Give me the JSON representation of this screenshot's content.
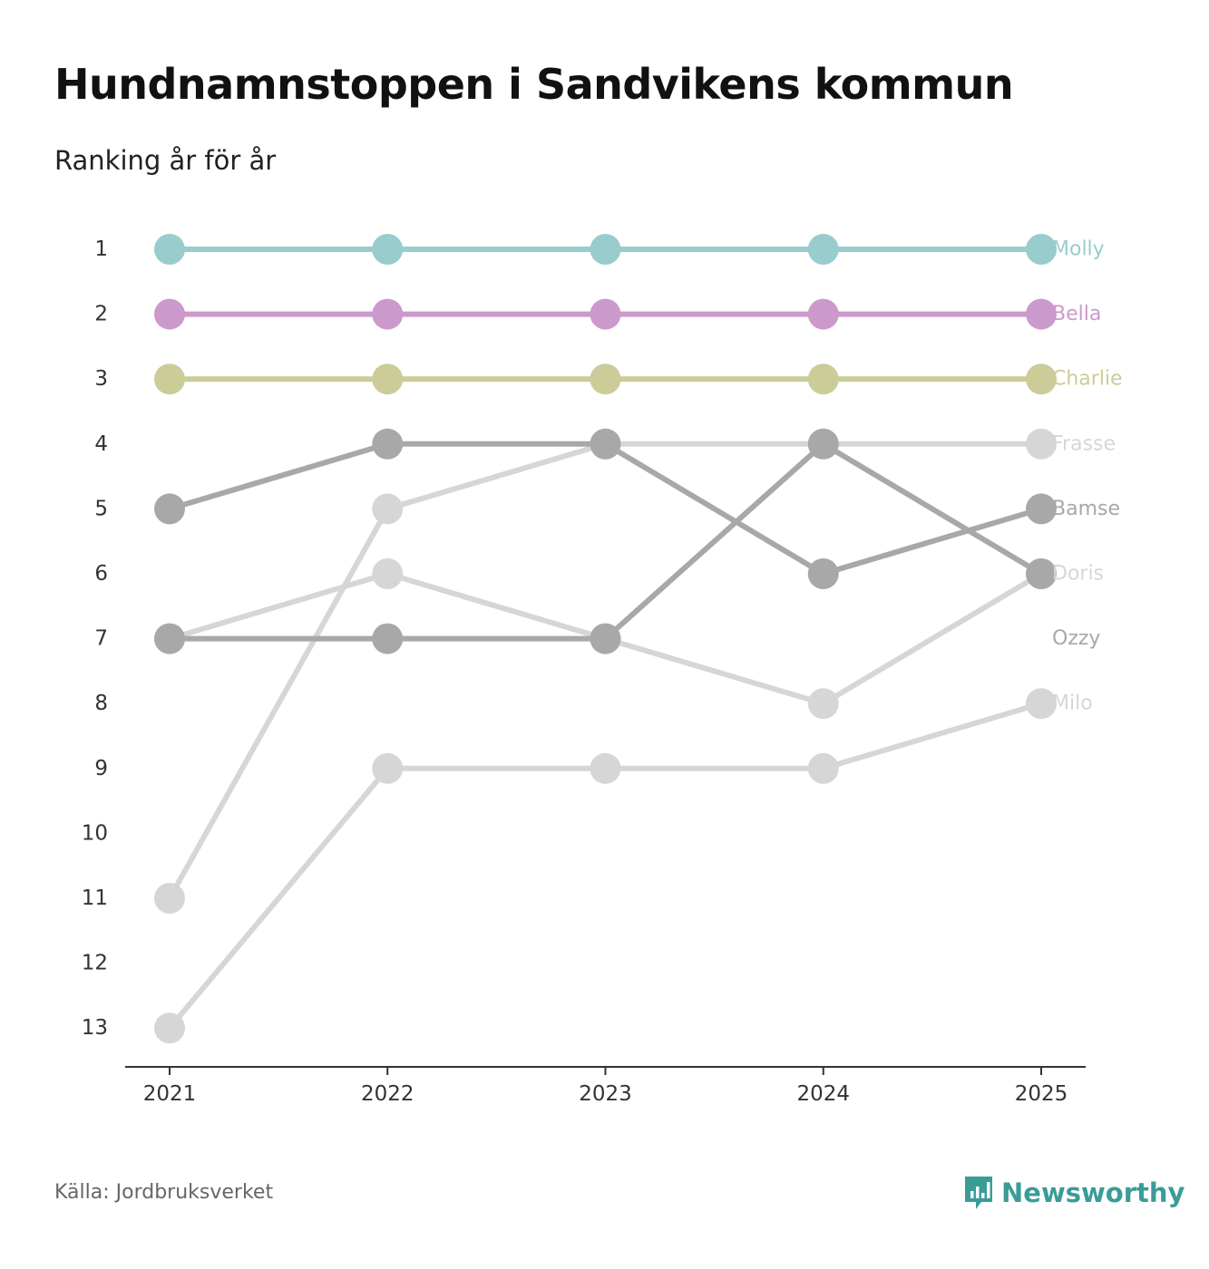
{
  "header": {
    "title": "Hundnamnstoppen i Sandvikens kommun",
    "subtitle": "Ranking år för år"
  },
  "footer": {
    "source": "Källa: Jordbruksverket",
    "brand": "Newsworthy"
  },
  "colors": {
    "teal": "#99cccc",
    "purple": "#cc99cc",
    "olive": "#cccc99",
    "dark_gray": "#a8a8a8",
    "light_gray": "#d6d6d6",
    "axis": "#333333",
    "brand": "#3a9c97"
  },
  "chart_data": {
    "type": "line",
    "subtype": "bump",
    "x": [
      "2021",
      "2022",
      "2023",
      "2024",
      "2025"
    ],
    "y_ticks": [
      1,
      2,
      3,
      4,
      5,
      6,
      7,
      8,
      9,
      10,
      11,
      12,
      13
    ],
    "y_reversed": true,
    "series": [
      {
        "name": "Milo",
        "values": [
          13,
          9,
          9,
          9,
          8
        ],
        "color": "#d6d6d6"
      },
      {
        "name": "Doris",
        "values": [
          7,
          6,
          7,
          8,
          6
        ],
        "color": "#d6d6d6"
      },
      {
        "name": "Frasse",
        "values": [
          11,
          5,
          4,
          4,
          4
        ],
        "color": "#d6d6d6"
      },
      {
        "name": "Ozzy",
        "values": [
          7,
          7,
          7,
          4,
          6
        ],
        "color": "#a8a8a8"
      },
      {
        "name": "Bamse",
        "values": [
          5,
          4,
          4,
          6,
          5
        ],
        "color": "#a8a8a8"
      },
      {
        "name": "Charlie",
        "values": [
          3,
          3,
          3,
          3,
          3
        ],
        "color": "#cccc99"
      },
      {
        "name": "Bella",
        "values": [
          2,
          2,
          2,
          2,
          2
        ],
        "color": "#cc99cc"
      },
      {
        "name": "Molly",
        "values": [
          1,
          1,
          1,
          1,
          1
        ],
        "color": "#99cccc"
      }
    ],
    "end_labels": [
      {
        "name": "Molly",
        "rank": 1,
        "color": "#99cccc"
      },
      {
        "name": "Bella",
        "rank": 2,
        "color": "#cc99cc"
      },
      {
        "name": "Charlie",
        "rank": 3,
        "color": "#cccc99"
      },
      {
        "name": "Frasse",
        "rank": 4,
        "color": "#d6d6d6"
      },
      {
        "name": "Bamse",
        "rank": 5,
        "color": "#a8a8a8"
      },
      {
        "name": "Doris",
        "rank": 6,
        "color": "#d6d6d6"
      },
      {
        "name": "Ozzy",
        "rank": 7,
        "color": "#a8a8a8"
      },
      {
        "name": "Milo",
        "rank": 8,
        "color": "#d6d6d6"
      }
    ]
  }
}
